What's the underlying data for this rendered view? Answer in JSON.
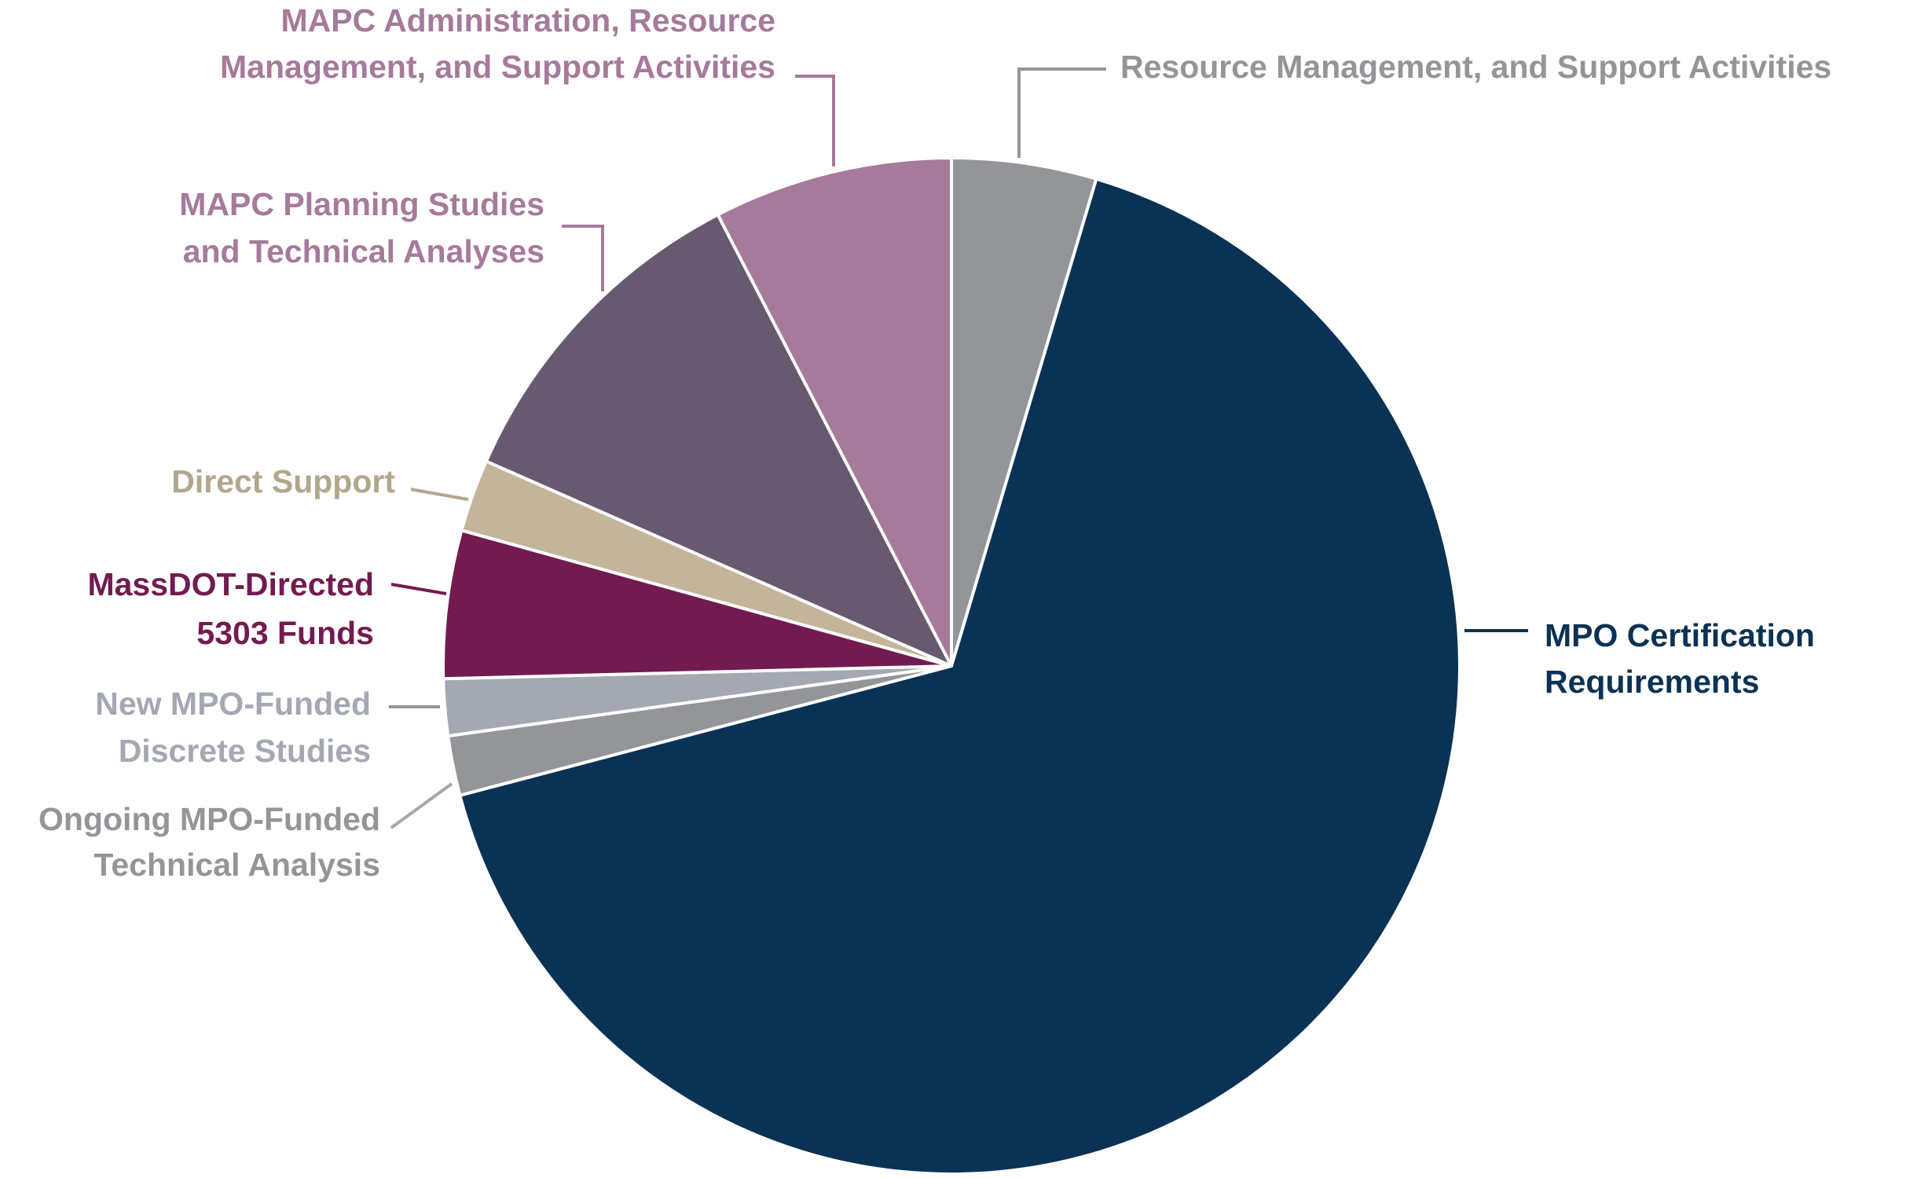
{
  "chart_data": {
    "type": "pie",
    "title": "",
    "start_angle": "top",
    "direction": "clockwise",
    "legend": "none (leader-line labels)",
    "unit": "percent (estimated from slice angles)",
    "slices": [
      {
        "label": [
          "Resource Management, and Support Activities"
        ],
        "value": 4.6,
        "color": "#949598",
        "label_color": "#949598"
      },
      {
        "label": [
          "MPO Certification",
          "Requirements"
        ],
        "value": 66.3,
        "color": "#0a3254",
        "label_color": "#0a3254"
      },
      {
        "label": [
          "Ongoing MPO-Funded",
          "Technical Analysis"
        ],
        "value": 1.9,
        "color": "#939598",
        "label_color": "#939598"
      },
      {
        "label": [
          "New MPO-Funded",
          "Discrete Studies"
        ],
        "value": 1.8,
        "color": "#a3a8b2",
        "label_color": "#a3a8b2"
      },
      {
        "label": [
          "MassDOT-Directed",
          "5303 Funds"
        ],
        "value": 4.7,
        "color": "#721b51",
        "label_color": "#721b51"
      },
      {
        "label": [
          "Direct Support"
        ],
        "value": 2.3,
        "color": "#c3b49a",
        "label_color": "#b2a68d"
      },
      {
        "label": [
          "MAPC Planning Studies",
          "and Technical Analyses"
        ],
        "value": 10.8,
        "color": "#67596f",
        "label_color": "#a57a9b"
      },
      {
        "label": [
          "MAPC Administration, Resource",
          "Management, and Support Activities"
        ],
        "value": 7.6,
        "color": "#a57a9b",
        "label_color": "#a57a9b"
      }
    ]
  }
}
